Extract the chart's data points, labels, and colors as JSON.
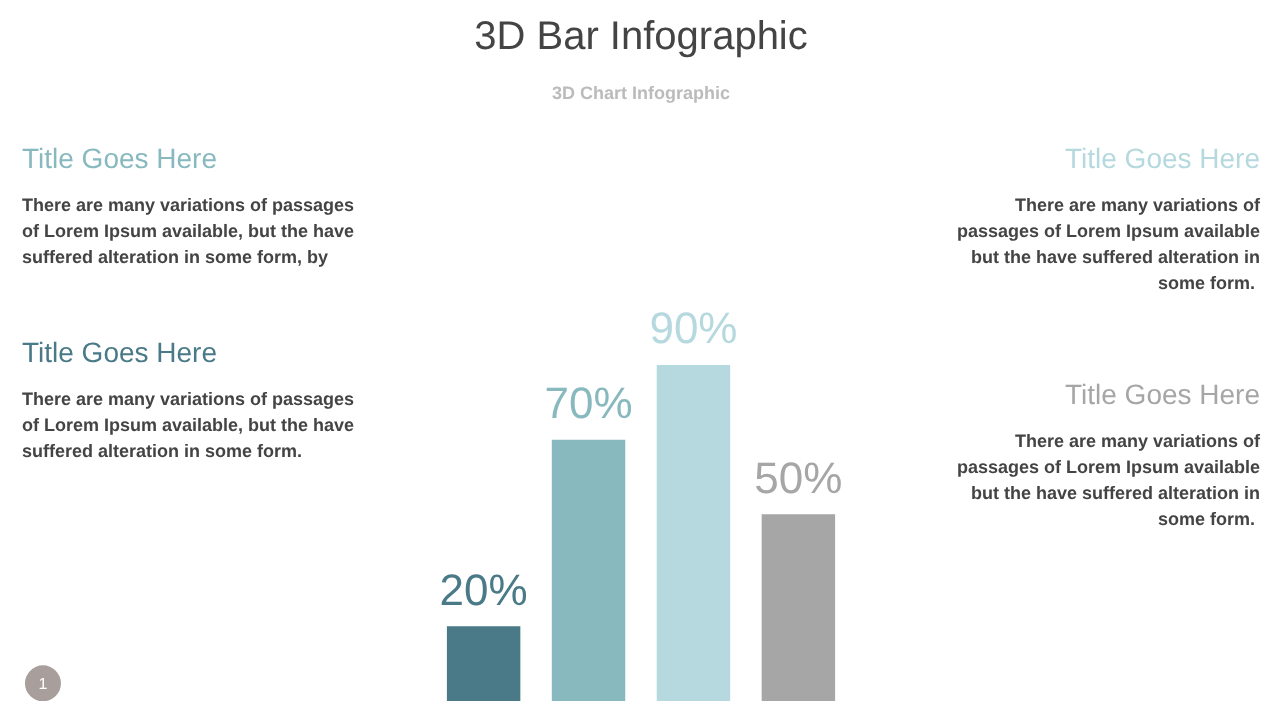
{
  "chart_data": {
    "type": "bar",
    "title": "3D Bar Infographic",
    "subtitle": "3D Chart Infographic",
    "categories": [
      null,
      null,
      null,
      null
    ],
    "values": [
      20,
      70,
      90,
      50
    ],
    "colors": [
      "#4a7a87",
      "#87b9bf",
      "#b5d9de",
      "#a6a6a6"
    ],
    "value_labels": [
      "20%",
      "70%",
      "90%",
      "50%"
    ],
    "annotations": [
      "Title Goes Here",
      "There are many variations of passages\nof Lorem Ipsum available, but the have\nsuffered alteration in some  form.",
      "Title Goes Here",
      "There are many variations of passages\nof Lorem Ipsum available, but the have\nsuffered alteration in some  form, by",
      "Title Goes Here",
      "There are many variations of\npassages of Lorem Ipsum available\nbut the have suffered alteration in\nsome  form.",
      "Title Goes Here",
      "There are many variations of\npassages of Lorem Ipsum available\nbut the have suffered alteration in\nsome  form.",
      "1"
    ],
    "grid": false
  }
}
